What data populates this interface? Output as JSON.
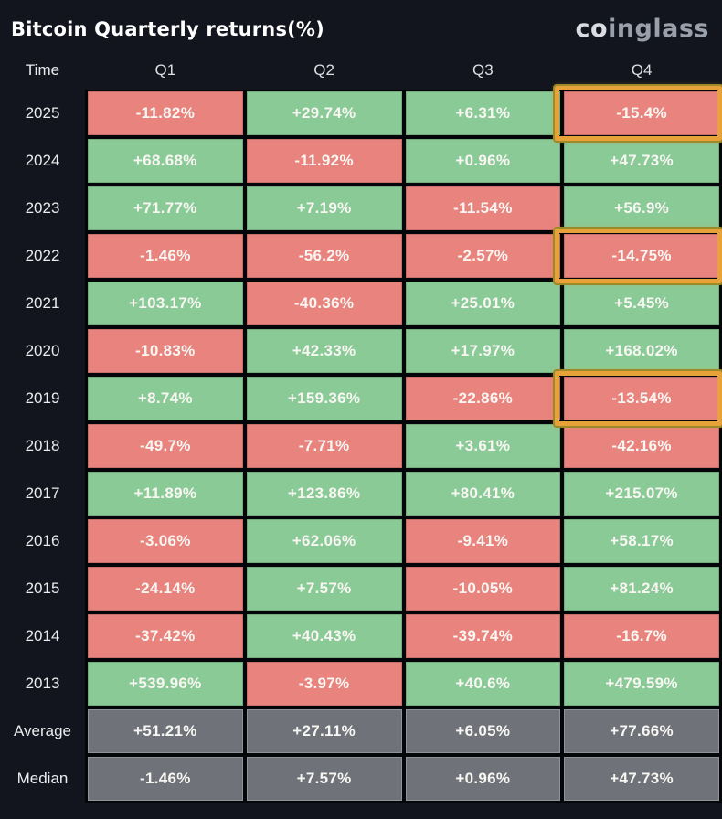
{
  "header": {
    "title": "Bitcoin Quarterly returns(%)",
    "logo_co": "co",
    "logo_rest": "inglass"
  },
  "colors": {
    "bg": "#12151d",
    "gap": "#05060a",
    "green": "#8aca96",
    "red": "#e9837d",
    "gray": "#6f7278",
    "cell-text": "#f7f6f2",
    "label-text": "#e9ebee",
    "highlight": "#e7a23a",
    "highlight-outer": "#9c8a28"
  },
  "table": {
    "columns": [
      "Time",
      "Q1",
      "Q2",
      "Q3",
      "Q4"
    ],
    "rows": [
      {
        "label": "2025",
        "cells": [
          {
            "text": "-11.82%",
            "tone": "red"
          },
          {
            "text": "+29.74%",
            "tone": "green"
          },
          {
            "text": "+6.31%",
            "tone": "green"
          },
          {
            "text": "-15.4%",
            "tone": "red",
            "highlight": true
          }
        ]
      },
      {
        "label": "2024",
        "cells": [
          {
            "text": "+68.68%",
            "tone": "green"
          },
          {
            "text": "-11.92%",
            "tone": "red"
          },
          {
            "text": "+0.96%",
            "tone": "green"
          },
          {
            "text": "+47.73%",
            "tone": "green"
          }
        ]
      },
      {
        "label": "2023",
        "cells": [
          {
            "text": "+71.77%",
            "tone": "green"
          },
          {
            "text": "+7.19%",
            "tone": "green"
          },
          {
            "text": "-11.54%",
            "tone": "red"
          },
          {
            "text": "+56.9%",
            "tone": "green"
          }
        ]
      },
      {
        "label": "2022",
        "cells": [
          {
            "text": "-1.46%",
            "tone": "red"
          },
          {
            "text": "-56.2%",
            "tone": "red"
          },
          {
            "text": "-2.57%",
            "tone": "red"
          },
          {
            "text": "-14.75%",
            "tone": "red",
            "highlight": true
          }
        ]
      },
      {
        "label": "2021",
        "cells": [
          {
            "text": "+103.17%",
            "tone": "green"
          },
          {
            "text": "-40.36%",
            "tone": "red"
          },
          {
            "text": "+25.01%",
            "tone": "green"
          },
          {
            "text": "+5.45%",
            "tone": "green"
          }
        ]
      },
      {
        "label": "2020",
        "cells": [
          {
            "text": "-10.83%",
            "tone": "red"
          },
          {
            "text": "+42.33%",
            "tone": "green"
          },
          {
            "text": "+17.97%",
            "tone": "green"
          },
          {
            "text": "+168.02%",
            "tone": "green"
          }
        ]
      },
      {
        "label": "2019",
        "cells": [
          {
            "text": "+8.74%",
            "tone": "green"
          },
          {
            "text": "+159.36%",
            "tone": "green"
          },
          {
            "text": "-22.86%",
            "tone": "red"
          },
          {
            "text": "-13.54%",
            "tone": "red",
            "highlight": true
          }
        ]
      },
      {
        "label": "2018",
        "cells": [
          {
            "text": "-49.7%",
            "tone": "red"
          },
          {
            "text": "-7.71%",
            "tone": "red"
          },
          {
            "text": "+3.61%",
            "tone": "green"
          },
          {
            "text": "-42.16%",
            "tone": "red"
          }
        ]
      },
      {
        "label": "2017",
        "cells": [
          {
            "text": "+11.89%",
            "tone": "green"
          },
          {
            "text": "+123.86%",
            "tone": "green"
          },
          {
            "text": "+80.41%",
            "tone": "green"
          },
          {
            "text": "+215.07%",
            "tone": "green"
          }
        ]
      },
      {
        "label": "2016",
        "cells": [
          {
            "text": "-3.06%",
            "tone": "red"
          },
          {
            "text": "+62.06%",
            "tone": "green"
          },
          {
            "text": "-9.41%",
            "tone": "red"
          },
          {
            "text": "+58.17%",
            "tone": "green"
          }
        ]
      },
      {
        "label": "2015",
        "cells": [
          {
            "text": "-24.14%",
            "tone": "red"
          },
          {
            "text": "+7.57%",
            "tone": "green"
          },
          {
            "text": "-10.05%",
            "tone": "red"
          },
          {
            "text": "+81.24%",
            "tone": "green"
          }
        ]
      },
      {
        "label": "2014",
        "cells": [
          {
            "text": "-37.42%",
            "tone": "red"
          },
          {
            "text": "+40.43%",
            "tone": "green"
          },
          {
            "text": "-39.74%",
            "tone": "red"
          },
          {
            "text": "-16.7%",
            "tone": "red"
          }
        ]
      },
      {
        "label": "2013",
        "cells": [
          {
            "text": "+539.96%",
            "tone": "green"
          },
          {
            "text": "-3.97%",
            "tone": "red"
          },
          {
            "text": "+40.6%",
            "tone": "green"
          },
          {
            "text": "+479.59%",
            "tone": "green"
          }
        ]
      },
      {
        "label": "Average",
        "cells": [
          {
            "text": "+51.21%",
            "tone": "gray"
          },
          {
            "text": "+27.11%",
            "tone": "gray"
          },
          {
            "text": "+6.05%",
            "tone": "gray"
          },
          {
            "text": "+77.66%",
            "tone": "gray"
          }
        ]
      },
      {
        "label": "Median",
        "cells": [
          {
            "text": "-1.46%",
            "tone": "gray"
          },
          {
            "text": "+7.57%",
            "tone": "gray"
          },
          {
            "text": "+0.96%",
            "tone": "gray"
          },
          {
            "text": "+47.73%",
            "tone": "gray"
          }
        ]
      }
    ]
  },
  "chart_data": {
    "type": "heatmap",
    "title": "Bitcoin Quarterly returns(%)",
    "columns": [
      "Q1",
      "Q2",
      "Q3",
      "Q4"
    ],
    "row_labels": [
      "2025",
      "2024",
      "2023",
      "2022",
      "2021",
      "2020",
      "2019",
      "2018",
      "2017",
      "2016",
      "2015",
      "2014",
      "2013",
      "Average",
      "Median"
    ],
    "values_pct": [
      [
        -11.82,
        29.74,
        6.31,
        -15.4
      ],
      [
        68.68,
        -11.92,
        0.96,
        47.73
      ],
      [
        71.77,
        7.19,
        -11.54,
        56.9
      ],
      [
        -1.46,
        -56.2,
        -2.57,
        -14.75
      ],
      [
        103.17,
        -40.36,
        25.01,
        5.45
      ],
      [
        -10.83,
        42.33,
        17.97,
        168.02
      ],
      [
        8.74,
        159.36,
        -22.86,
        -13.54
      ],
      [
        -49.7,
        -7.71,
        3.61,
        -42.16
      ],
      [
        11.89,
        123.86,
        80.41,
        215.07
      ],
      [
        -3.06,
        62.06,
        -9.41,
        58.17
      ],
      [
        -24.14,
        7.57,
        -10.05,
        81.24
      ],
      [
        -37.42,
        40.43,
        -39.74,
        -16.7
      ],
      [
        539.96,
        -3.97,
        40.6,
        479.59
      ],
      [
        51.21,
        27.11,
        6.05,
        77.66
      ],
      [
        -1.46,
        7.57,
        0.96,
        47.73
      ]
    ],
    "color_rule": "green = positive return, red = negative return, gray = summary rows (Average/Median)",
    "highlighted_cells": [
      [
        "2025",
        "Q4"
      ],
      [
        "2022",
        "Q4"
      ],
      [
        "2019",
        "Q4"
      ]
    ],
    "legend_position": "none",
    "grid": false
  }
}
